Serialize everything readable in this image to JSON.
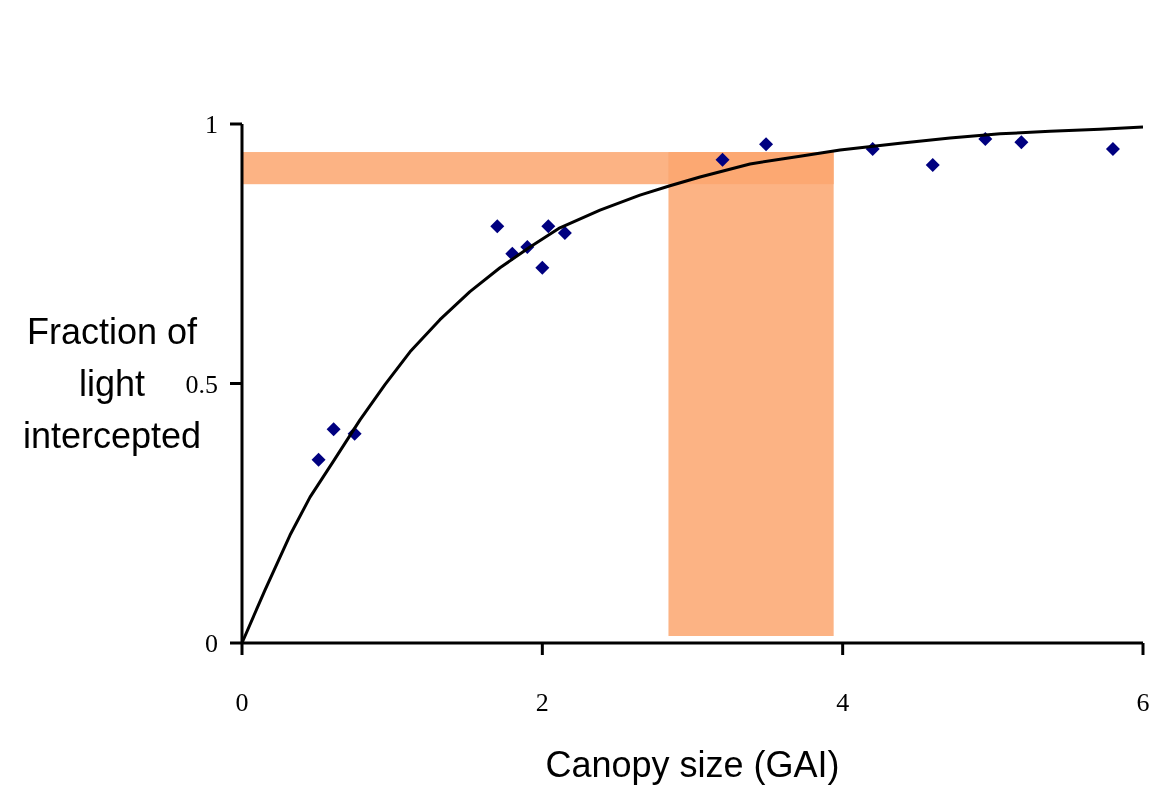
{
  "chart_data": {
    "type": "scatter",
    "xlabel": "Canopy size (GAI)",
    "ylabel": "Fraction of light intercepted",
    "xlim": [
      0,
      6
    ],
    "xticks": [
      0,
      2,
      4,
      6
    ],
    "ylim": [
      0,
      1
    ],
    "yticks": [
      0,
      0.5,
      1
    ],
    "grid": false,
    "series": [
      {
        "color": "#000080",
        "marker": "diamond",
        "x": [
          0.51,
          0.61,
          0.75,
          1.7,
          1.8,
          1.9,
          2.0,
          2.04,
          2.15,
          3.2,
          3.49,
          4.2,
          4.6,
          4.95,
          5.19,
          5.8
        ],
        "values": [
          0.353,
          0.412,
          0.403,
          0.803,
          0.75,
          0.763,
          0.723,
          0.803,
          0.79,
          0.931,
          0.961,
          0.952,
          0.921,
          0.971,
          0.965,
          0.952
        ]
      },
      {
        "type": "line",
        "color": "#000000",
        "marker": "none",
        "line_style": "solid",
        "x": [
          0,
          0.153,
          0.32,
          0.453,
          0.606,
          0.786,
          0.952,
          1.119,
          1.318,
          1.518,
          1.718,
          1.918,
          2.117,
          2.384,
          2.65,
          2.85,
          3.05,
          3.383,
          3.716,
          3.983,
          4.382,
          4.715,
          5.048,
          5.381,
          5.714,
          6
        ],
        "values": [
          0,
          0.102,
          0.208,
          0.281,
          0.349,
          0.43,
          0.498,
          0.561,
          0.623,
          0.677,
          0.723,
          0.763,
          0.8,
          0.834,
          0.863,
          0.881,
          0.898,
          0.923,
          0.938,
          0.95,
          0.963,
          0.973,
          0.981,
          0.986,
          0.99,
          0.994
        ]
      }
    ],
    "bands": [
      {
        "axis": "y",
        "from": 0.884,
        "to": 0.946,
        "color": "#fca66e"
      },
      {
        "axis": "x",
        "from": 2.84,
        "to": 3.94,
        "color": "#fca66e"
      }
    ]
  }
}
